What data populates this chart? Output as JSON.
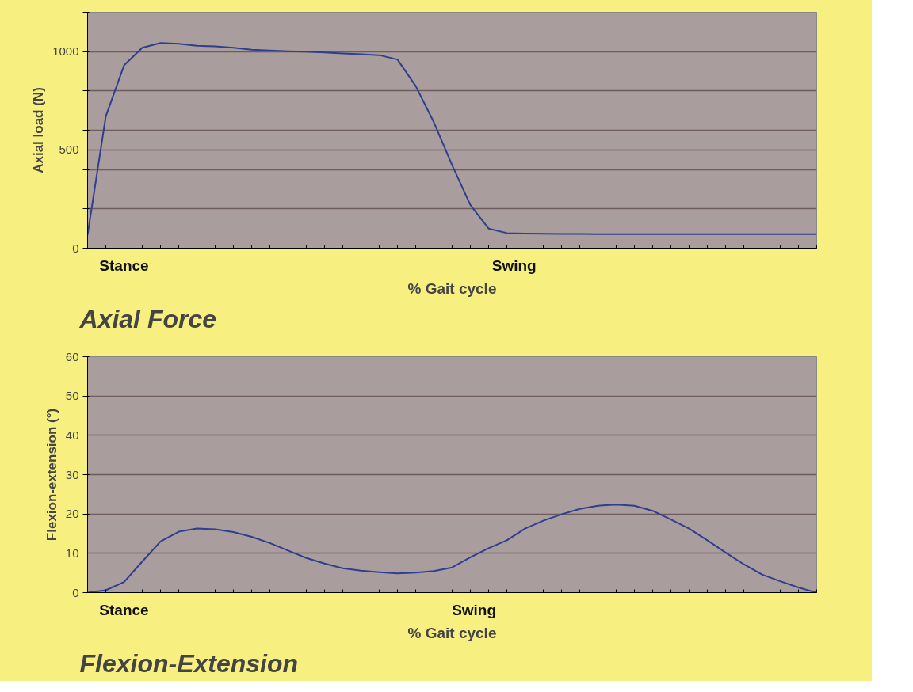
{
  "chart_data": [
    {
      "type": "line",
      "title": "Axial Force",
      "xlabel": "% Gait cycle",
      "ylabel": "Axial load (N)",
      "annotations": [
        "Stance",
        "Swing"
      ],
      "categories": [
        null,
        null,
        null,
        null,
        null,
        null,
        null,
        null,
        null,
        null,
        null,
        null,
        null,
        null,
        null,
        null,
        null,
        null,
        null,
        null,
        null,
        null,
        null,
        null,
        null,
        null,
        null,
        null,
        null,
        null,
        null,
        null,
        null,
        null,
        null,
        null,
        null,
        null,
        null,
        null,
        null
      ],
      "series": [
        {
          "color": "#2e3f8f",
          "values": [
            68,
            671,
            930,
            1020,
            1044,
            1040,
            1030,
            1027,
            1020,
            1010,
            1006,
            1002,
            1000,
            996,
            991,
            987,
            982,
            960,
            825,
            640,
            422,
            220,
            100,
            77,
            74,
            73,
            72,
            72,
            71,
            71,
            71,
            71,
            71,
            71,
            71,
            71,
            71,
            71,
            71,
            71,
            71
          ]
        }
      ],
      "ylim": [
        0,
        1200
      ],
      "yticks": [
        0,
        {
          "value": 200,
          "label": null
        },
        {
          "value": 400,
          "label": null
        },
        500,
        {
          "value": 600,
          "label": null
        },
        {
          "value": 800,
          "label": null
        },
        1000,
        {
          "value": 1200,
          "label": null
        }
      ],
      "tick_labels": "y",
      "grid": "y",
      "marker": "none",
      "line_style": "solid"
    },
    {
      "type": "line",
      "title": "Flexion-Extension",
      "xlabel": "% Gait cycle",
      "ylabel": "Flexion-extension (°)",
      "annotations": [
        "Stance",
        "Swing"
      ],
      "categories": [
        null,
        null,
        null,
        null,
        null,
        null,
        null,
        null,
        null,
        null,
        null,
        null,
        null,
        null,
        null,
        null,
        null,
        null,
        null,
        null,
        null,
        null,
        null,
        null,
        null,
        null,
        null,
        null,
        null,
        null,
        null,
        null,
        null,
        null,
        null,
        null,
        null,
        null,
        null,
        null,
        null
      ],
      "series": [
        {
          "color": "#2e3f8f",
          "values": [
            0,
            0.6,
            2.7,
            7.9,
            13.0,
            15.5,
            16.3,
            16.1,
            15.4,
            14.2,
            12.6,
            10.7,
            8.8,
            7.4,
            6.2,
            5.6,
            5.2,
            4.9,
            5.1,
            5.5,
            6.4,
            9.0,
            11.3,
            13.3,
            16.3,
            18.3,
            19.9,
            21.3,
            22.1,
            22.4,
            22.1,
            20.8,
            18.6,
            16.3,
            13.3,
            10.2,
            7.2,
            4.6,
            2.9,
            1.3,
            0
          ]
        }
      ],
      "ylim": [
        0,
        60
      ],
      "yticks": [
        0,
        10,
        20,
        30,
        40,
        50,
        60
      ],
      "tick_labels": "y",
      "grid": "y",
      "marker": "none",
      "line_style": "solid"
    }
  ]
}
